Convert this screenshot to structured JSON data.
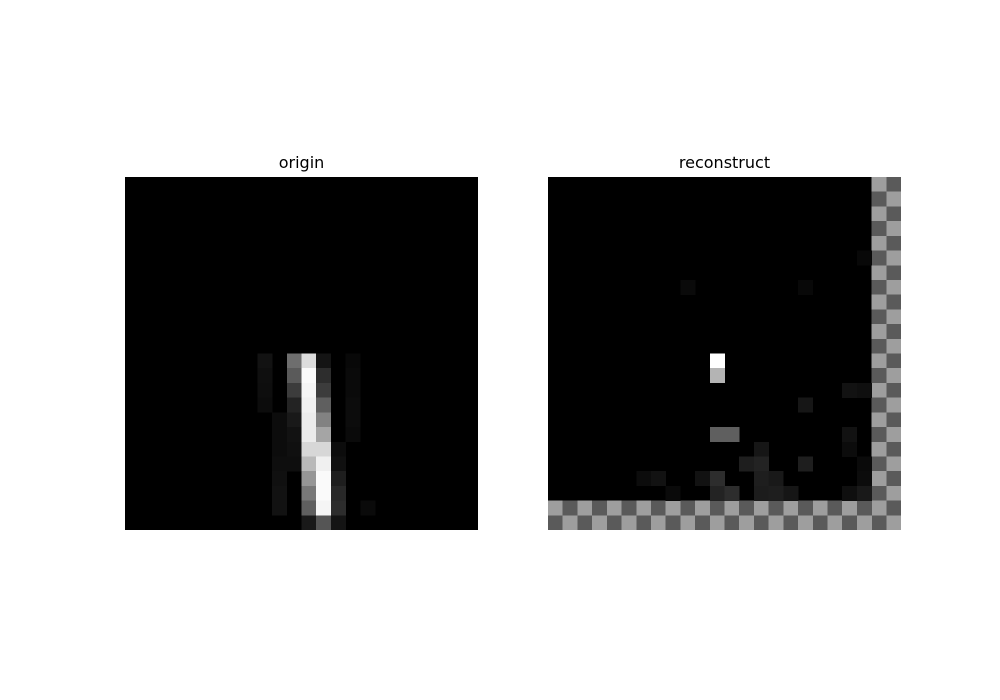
{
  "figure": {
    "panels": [
      {
        "title": "origin",
        "grid_size": 24,
        "background": "#000000",
        "cells": [
          [
            12,
            9,
            18
          ],
          [
            12,
            11,
            110
          ],
          [
            12,
            12,
            220
          ],
          [
            12,
            13,
            20
          ],
          [
            12,
            15,
            8
          ],
          [
            13,
            9,
            15
          ],
          [
            13,
            11,
            90
          ],
          [
            13,
            12,
            250
          ],
          [
            13,
            13,
            45
          ],
          [
            13,
            15,
            10
          ],
          [
            14,
            9,
            14
          ],
          [
            14,
            11,
            60
          ],
          [
            14,
            12,
            245
          ],
          [
            14,
            13,
            60
          ],
          [
            14,
            15,
            10
          ],
          [
            15,
            9,
            12
          ],
          [
            15,
            11,
            35
          ],
          [
            15,
            12,
            240
          ],
          [
            15,
            13,
            95
          ],
          [
            15,
            15,
            12
          ],
          [
            16,
            10,
            12
          ],
          [
            16,
            11,
            25
          ],
          [
            16,
            12,
            235
          ],
          [
            16,
            13,
            130
          ],
          [
            16,
            15,
            12
          ],
          [
            17,
            10,
            12
          ],
          [
            17,
            11,
            18
          ],
          [
            17,
            12,
            235
          ],
          [
            17,
            13,
            165
          ],
          [
            17,
            15,
            10
          ],
          [
            18,
            10,
            12
          ],
          [
            18,
            11,
            16
          ],
          [
            18,
            12,
            215
          ],
          [
            18,
            13,
            215
          ],
          [
            18,
            14,
            12
          ],
          [
            19,
            10,
            14
          ],
          [
            19,
            11,
            14
          ],
          [
            19,
            12,
            185
          ],
          [
            19,
            13,
            240
          ],
          [
            19,
            14,
            16
          ],
          [
            20,
            10,
            16
          ],
          [
            20,
            12,
            150
          ],
          [
            20,
            13,
            250
          ],
          [
            20,
            14,
            30
          ],
          [
            21,
            10,
            18
          ],
          [
            21,
            12,
            120
          ],
          [
            21,
            13,
            250
          ],
          [
            21,
            14,
            40
          ],
          [
            22,
            10,
            18
          ],
          [
            22,
            12,
            95
          ],
          [
            22,
            13,
            245
          ],
          [
            22,
            14,
            45
          ],
          [
            22,
            16,
            10
          ],
          [
            23,
            12,
            25
          ],
          [
            23,
            13,
            85
          ],
          [
            23,
            14,
            20
          ]
        ]
      },
      {
        "title": "reconstruct",
        "grid_size": 24,
        "background": "#000000",
        "border_right_colors": [
          "#9e9e9e",
          "#5a5a5a"
        ],
        "border_bottom_colors": [
          "#9e9e9e",
          "#5a5a5a"
        ],
        "cells": [
          [
            5,
            21,
            8
          ],
          [
            7,
            9,
            10
          ],
          [
            7,
            17,
            8
          ],
          [
            12,
            11,
            255
          ],
          [
            13,
            11,
            180
          ],
          [
            14,
            20,
            18
          ],
          [
            14,
            21,
            15
          ],
          [
            15,
            17,
            22
          ],
          [
            17,
            11,
            95
          ],
          [
            17,
            12,
            95
          ],
          [
            17,
            20,
            18
          ],
          [
            18,
            14,
            22
          ],
          [
            18,
            20,
            12
          ],
          [
            19,
            13,
            30
          ],
          [
            19,
            14,
            35
          ],
          [
            19,
            17,
            30
          ],
          [
            19,
            21,
            10
          ],
          [
            20,
            6,
            12
          ],
          [
            20,
            7,
            18
          ],
          [
            20,
            10,
            18
          ],
          [
            20,
            11,
            45
          ],
          [
            20,
            14,
            30
          ],
          [
            20,
            15,
            25
          ],
          [
            20,
            21,
            12
          ],
          [
            21,
            8,
            10
          ],
          [
            21,
            11,
            35
          ],
          [
            21,
            12,
            45
          ],
          [
            21,
            14,
            28
          ],
          [
            21,
            15,
            30
          ],
          [
            21,
            16,
            22
          ],
          [
            21,
            20,
            15
          ],
          [
            21,
            21,
            25
          ]
        ]
      }
    ]
  }
}
